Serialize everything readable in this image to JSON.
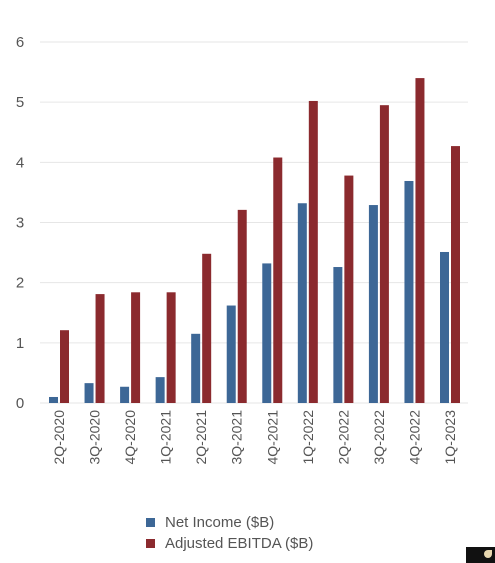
{
  "chart_data": {
    "type": "bar",
    "title": "",
    "xlabel": "",
    "ylabel": "",
    "categories": [
      "2Q-2020",
      "3Q-2020",
      "4Q-2020",
      "1Q-2021",
      "2Q-2021",
      "3Q-2021",
      "4Q-2021",
      "1Q-2022",
      "2Q-2022",
      "3Q-2022",
      "4Q-2022",
      "1Q-2023"
    ],
    "yticks": [
      0,
      1,
      2,
      3,
      4,
      5,
      6
    ],
    "ylim": [
      0,
      6
    ],
    "grid": true,
    "legend_position": "bottom",
    "series": [
      {
        "name": "Net Income ($B)",
        "color": "#3d6796",
        "values": [
          0.1,
          0.33,
          0.27,
          0.43,
          1.15,
          1.62,
          2.32,
          3.32,
          2.26,
          3.29,
          3.69,
          2.51
        ]
      },
      {
        "name": "Adjusted EBITDA ($B)",
        "color": "#8b2a2e",
        "values": [
          1.21,
          1.81,
          1.84,
          1.84,
          2.48,
          3.21,
          4.08,
          5.02,
          3.78,
          4.95,
          5.4,
          4.27
        ]
      }
    ]
  }
}
